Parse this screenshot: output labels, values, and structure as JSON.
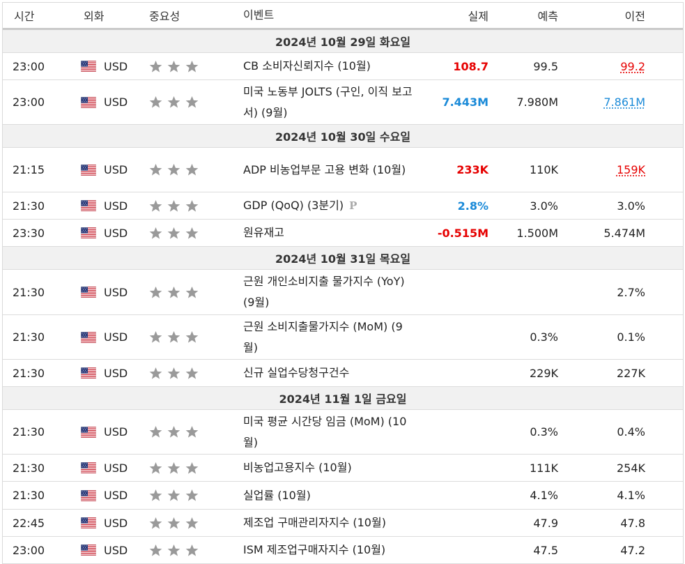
{
  "header": {
    "time": "시간",
    "currency": "외화",
    "importance": "중요성",
    "event": "이벤트",
    "actual": "실제",
    "forecast": "예측",
    "previous": "이전"
  },
  "colors": {
    "better": "#e60000",
    "worse": "#1a8ad8",
    "star": "#9a9a9a",
    "date_band": "#f1f1f1"
  },
  "days": [
    {
      "date": "2024년 10월 29일 화요일",
      "events": [
        {
          "time": "23:00",
          "currency": "USD",
          "event": "CB 소비자신뢰지수 (10월)",
          "actual": "108.7",
          "actual_color": "red",
          "forecast": "99.5",
          "previous": "99.2",
          "previous_style": "rev-red",
          "height": 38
        },
        {
          "time": "23:00",
          "currency": "USD",
          "event": "미국 노동부 JOLTS (구인, 이직 보고서) (9월)",
          "actual": "7.443M",
          "actual_color": "blue",
          "forecast": "7.980M",
          "previous": "7.861M",
          "previous_style": "rev-blue",
          "height": 63
        }
      ]
    },
    {
      "date": "2024년 10월 30일 수요일",
      "events": [
        {
          "time": "21:15",
          "currency": "USD",
          "event": "ADP 비농업부문 고용 변화 (10월)",
          "actual": "233K",
          "actual_color": "red",
          "forecast": "110K",
          "previous": "159K",
          "previous_style": "rev-red",
          "height": 63
        },
        {
          "time": "21:30",
          "currency": "USD",
          "event": "GDP (QoQ) (3분기)",
          "preliminary_mark": "P",
          "actual": "2.8%",
          "actual_color": "blue",
          "forecast": "3.0%",
          "previous": "3.0%",
          "previous_style": "",
          "height": 38
        },
        {
          "time": "23:30",
          "currency": "USD",
          "event": "원유재고",
          "actual": "-0.515M",
          "actual_color": "red",
          "forecast": "1.500M",
          "previous": "5.474M",
          "previous_style": "",
          "height": 38
        }
      ]
    },
    {
      "date": "2024년 10월 31일 목요일",
      "events": [
        {
          "time": "21:30",
          "currency": "USD",
          "event": "근원 개인소비지출 물가지수 (YoY) (9월)",
          "actual": "",
          "actual_color": "",
          "forecast": "",
          "previous": "2.7%",
          "previous_style": "",
          "height": 64
        },
        {
          "time": "21:30",
          "currency": "USD",
          "event": "근원 소비지출물가지수 (MoM) (9월)",
          "actual": "",
          "actual_color": "",
          "forecast": "0.3%",
          "previous": "0.1%",
          "previous_style": "",
          "height": 63
        },
        {
          "time": "21:30",
          "currency": "USD",
          "event": "신규 실업수당청구건수",
          "actual": "",
          "actual_color": "",
          "forecast": "229K",
          "previous": "227K",
          "previous_style": "",
          "height": 38
        }
      ]
    },
    {
      "date": "2024년 11월 1일 금요일",
      "events": [
        {
          "time": "21:30",
          "currency": "USD",
          "event": "미국 평균 시간당 임금 (MoM) (10월)",
          "actual": "",
          "actual_color": "",
          "forecast": "0.3%",
          "previous": "0.4%",
          "previous_style": "",
          "height": 63
        },
        {
          "time": "21:30",
          "currency": "USD",
          "event": "비농업고용지수 (10월)",
          "actual": "",
          "actual_color": "",
          "forecast": "111K",
          "previous": "254K",
          "previous_style": "",
          "height": 38
        },
        {
          "time": "21:30",
          "currency": "USD",
          "event": "실업률 (10월)",
          "actual": "",
          "actual_color": "",
          "forecast": "4.1%",
          "previous": "4.1%",
          "previous_style": "",
          "height": 39
        },
        {
          "time": "22:45",
          "currency": "USD",
          "event": "제조업 구매관리자지수 (10월)",
          "actual": "",
          "actual_color": "",
          "forecast": "47.9",
          "previous": "47.8",
          "previous_style": "",
          "height": 38
        },
        {
          "time": "23:00",
          "currency": "USD",
          "event": "ISM 제조업구매자지수 (10월)",
          "actual": "",
          "actual_color": "",
          "forecast": "47.5",
          "previous": "47.2",
          "previous_style": "",
          "height": 38
        }
      ]
    }
  ],
  "importance_level": 3,
  "flag_icon": "us-flag-icon",
  "star_icon": "bull-star-icon"
}
